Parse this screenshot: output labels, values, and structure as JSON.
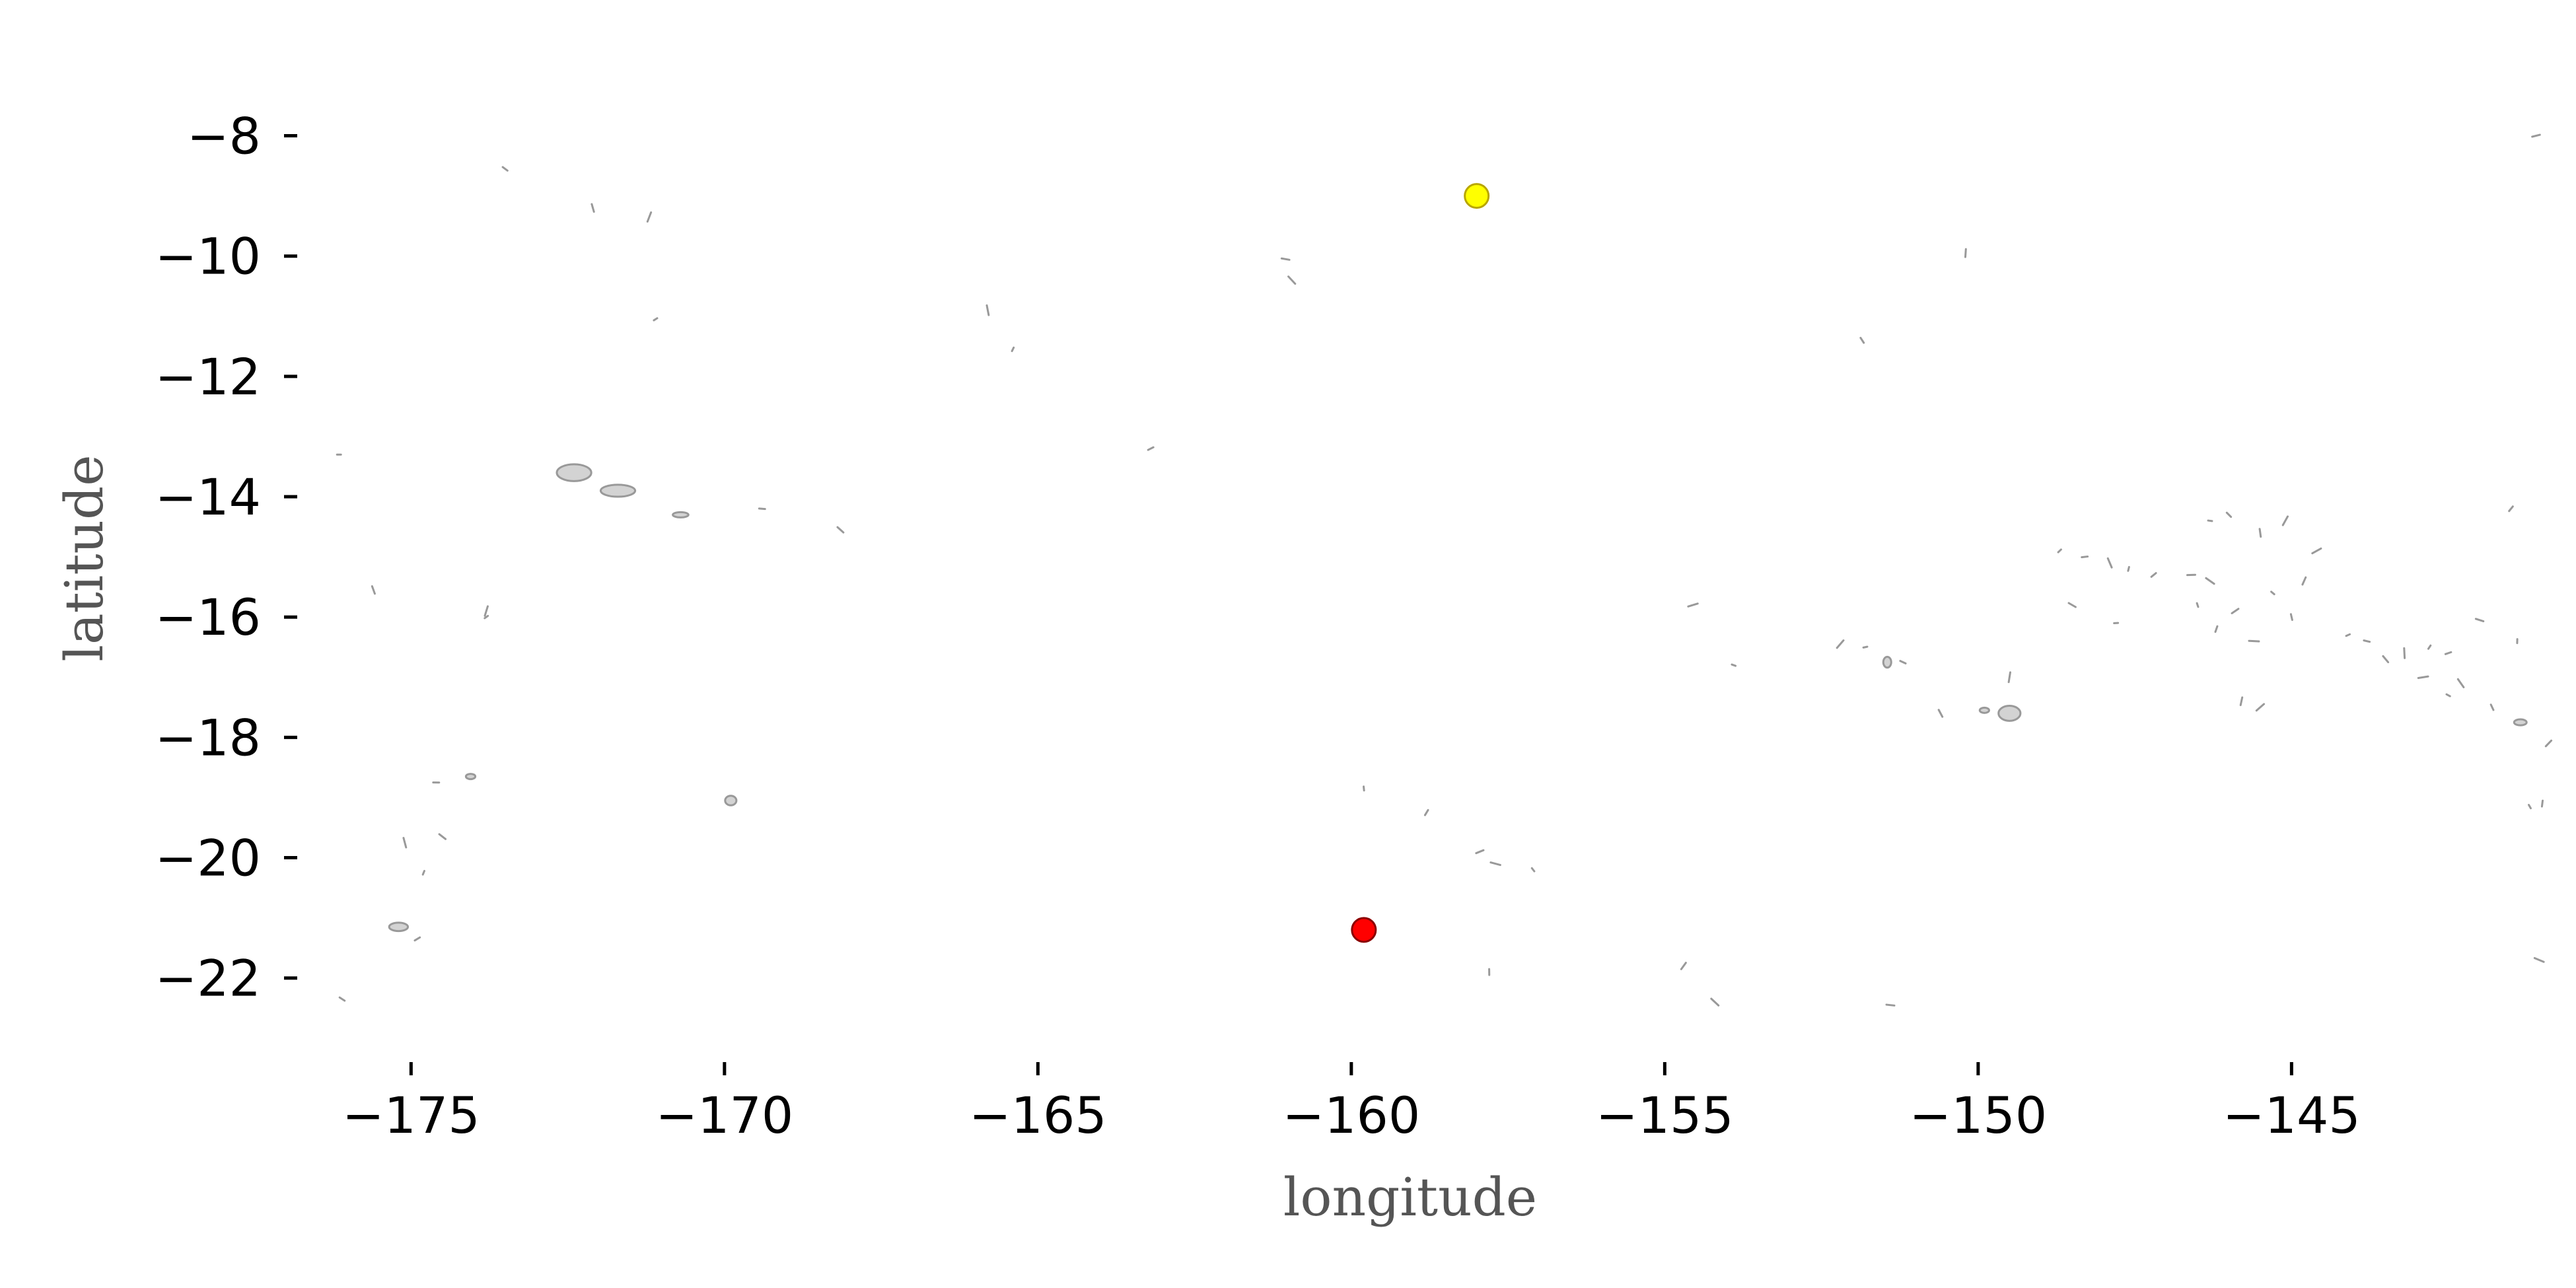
{
  "chart_data": {
    "type": "scatter",
    "xlabel": "longitude",
    "ylabel": "latitude",
    "xlim": [
      -176.5,
      -141.2
    ],
    "ylim": [
      -23.2,
      -7.5
    ],
    "x_ticks": [
      -175,
      -170,
      -165,
      -160,
      -155,
      -150,
      -145
    ],
    "y_ticks": [
      -8,
      -10,
      -12,
      -14,
      -16,
      -18,
      -20,
      -22
    ],
    "x_tick_labels": [
      "−175",
      "−170",
      "−165",
      "−160",
      "−155",
      "−150",
      "−145"
    ],
    "y_tick_labels": [
      "−8",
      "−10",
      "−12",
      "−14",
      "−16",
      "−18",
      "−20",
      "−22"
    ],
    "grid": false,
    "points": [
      {
        "lon": -158.0,
        "lat": -9.0,
        "color": "#ffff00"
      },
      {
        "lon": -159.8,
        "lat": -21.2,
        "color": "#ff0000"
      }
    ],
    "coastline": {
      "land_color": "#d3d3d3",
      "edge_color": "#999999",
      "islands": [
        {
          "lon": -172.4,
          "lat": -13.6,
          "w": 0.55,
          "h": 0.28
        },
        {
          "lon": -171.7,
          "lat": -13.9,
          "w": 0.55,
          "h": 0.2
        },
        {
          "lon": -170.7,
          "lat": -14.3,
          "w": 0.25,
          "h": 0.08
        },
        {
          "lon": -169.9,
          "lat": -19.05,
          "w": 0.18,
          "h": 0.16
        },
        {
          "lon": -175.2,
          "lat": -21.15,
          "w": 0.3,
          "h": 0.14
        },
        {
          "lon": -149.5,
          "lat": -17.6,
          "w": 0.35,
          "h": 0.25
        },
        {
          "lon": -149.9,
          "lat": -17.55,
          "w": 0.15,
          "h": 0.08
        },
        {
          "lon": -151.45,
          "lat": -16.75,
          "w": 0.12,
          "h": 0.18
        },
        {
          "lon": -141.35,
          "lat": -17.75,
          "w": 0.2,
          "h": 0.1
        },
        {
          "lon": -174.05,
          "lat": -18.65,
          "w": 0.15,
          "h": 0.08
        }
      ],
      "islets": [
        [
          -176.15,
          -13.3
        ],
        [
          -173.5,
          -8.55
        ],
        [
          -172.1,
          -9.2
        ],
        [
          -171.2,
          -9.35
        ],
        [
          -171.1,
          -11.05
        ],
        [
          -169.4,
          -14.2
        ],
        [
          -168.15,
          -14.55
        ],
        [
          -165.8,
          -10.9
        ],
        [
          -165.4,
          -11.55
        ],
        [
          -163.2,
          -13.2
        ],
        [
          -161.05,
          -10.05
        ],
        [
          -160.95,
          -10.4
        ],
        [
          -159.8,
          -18.85
        ],
        [
          -158.8,
          -19.25
        ],
        [
          -157.95,
          -19.9
        ],
        [
          -157.7,
          -20.1
        ],
        [
          -157.1,
          -20.2
        ],
        [
          -157.8,
          -21.9
        ],
        [
          -154.7,
          -21.8
        ],
        [
          -154.55,
          -15.8
        ],
        [
          -153.9,
          -16.8
        ],
        [
          -151.85,
          -11.4
        ],
        [
          -150.2,
          -9.95
        ],
        [
          -152.2,
          -16.45
        ],
        [
          -151.8,
          -16.5
        ],
        [
          -151.2,
          -16.75
        ],
        [
          -150.6,
          -17.6
        ],
        [
          -149.5,
          -17.0
        ],
        [
          -148.7,
          -14.9
        ],
        [
          -148.3,
          -15.0
        ],
        [
          -148.5,
          -15.8
        ],
        [
          -147.9,
          -15.1
        ],
        [
          -147.6,
          -15.2
        ],
        [
          -147.2,
          -15.3
        ],
        [
          -146.6,
          -15.3
        ],
        [
          -146.3,
          -15.4
        ],
        [
          -146.5,
          -15.8
        ],
        [
          -146.2,
          -16.2
        ],
        [
          -145.9,
          -15.9
        ],
        [
          -145.6,
          -16.4
        ],
        [
          -145.3,
          -15.6
        ],
        [
          -145.0,
          -16.0
        ],
        [
          -144.8,
          -15.4
        ],
        [
          -144.6,
          -14.9
        ],
        [
          -146.3,
          -14.4
        ],
        [
          -146.0,
          -14.3
        ],
        [
          -145.5,
          -14.6
        ],
        [
          -145.1,
          -14.4
        ],
        [
          -144.1,
          -16.3
        ],
        [
          -143.8,
          -16.4
        ],
        [
          -143.5,
          -16.7
        ],
        [
          -143.2,
          -16.6
        ],
        [
          -142.8,
          -16.5
        ],
        [
          -142.5,
          -16.6
        ],
        [
          -142.0,
          -16.05
        ],
        [
          -142.3,
          -17.1
        ],
        [
          -141.4,
          -16.4
        ],
        [
          -141.5,
          -14.2
        ],
        [
          -141.1,
          -8.0
        ],
        [
          -141.05,
          -21.7
        ],
        [
          -141.2,
          -19.15
        ],
        [
          -141.0,
          -19.1
        ],
        [
          -140.9,
          -18.1
        ],
        [
          -142.9,
          -17.0
        ],
        [
          -142.5,
          -17.3
        ],
        [
          -141.8,
          -17.5
        ],
        [
          -145.8,
          -17.4
        ],
        [
          -145.5,
          -17.5
        ],
        [
          -147.8,
          -16.1
        ],
        [
          -176.1,
          -22.35
        ],
        [
          -175.6,
          -15.55
        ],
        [
          -173.8,
          -15.9
        ],
        [
          -173.8,
          -16.0
        ],
        [
          -174.6,
          -18.75
        ],
        [
          -174.5,
          -19.65
        ],
        [
          -175.1,
          -19.75
        ],
        [
          -174.8,
          -20.25
        ],
        [
          -174.9,
          -21.35
        ],
        [
          -151.4,
          -22.45
        ],
        [
          -154.2,
          -22.4
        ]
      ]
    }
  }
}
